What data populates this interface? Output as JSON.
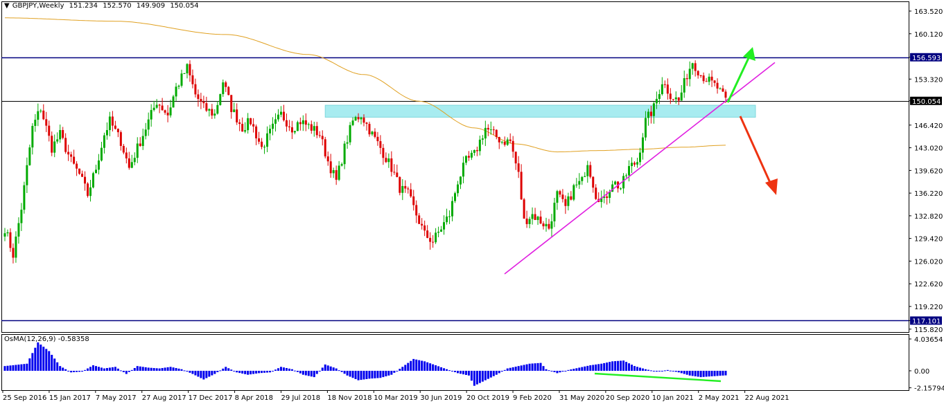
{
  "header": {
    "symbol": "GBPJPY,Weekly",
    "open": "151.234",
    "high": "152.570",
    "low": "149.909",
    "close": "150.054"
  },
  "indicator": {
    "name": "OsMA(12,26,9)",
    "value": "-0.58358",
    "ticks": [
      "4.03654",
      "0.00",
      "-2.15794"
    ]
  },
  "chart_data": {
    "type": "candlestick",
    "price_ticks": [
      "163.520",
      "160.120",
      "156.593",
      "153.320",
      "150.054",
      "146.420",
      "143.020",
      "139.620",
      "136.220",
      "132.820",
      "129.420",
      "126.020",
      "122.620",
      "119.220",
      "117.101",
      "115.820"
    ],
    "date_ticks": [
      "25 Sep 2016",
      "15 Jan 2017",
      "7 May 2017",
      "27 Aug 2017",
      "17 Dec 2017",
      "8 Apr 2018",
      "29 Jul 2018",
      "18 Nov 2018",
      "10 Mar 2019",
      "30 Jun 2019",
      "20 Oct 2019",
      "9 Feb 2020",
      "31 May 2020",
      "20 Sep 2020",
      "10 Jan 2021",
      "2 May 2021",
      "22 Aug 2021"
    ],
    "horizontal_levels": [
      {
        "value": 156.593,
        "label": "156.593",
        "color": "#000080"
      },
      {
        "value": 150.054,
        "label": "150.054",
        "color": "#000000"
      },
      {
        "value": 117.101,
        "label": "117.101",
        "color": "#000080"
      }
    ],
    "zone": {
      "from": 147.6,
      "to": 149.4,
      "color": "#a8ecf0"
    },
    "trendline": {
      "from": {
        "date": "2020-03-16",
        "price": 124.1
      },
      "to": {
        "date": "2021-09-13",
        "price": 155.4
      },
      "color": "#e020e0"
    },
    "arrows": [
      {
        "direction": "up",
        "color": "#22ee22"
      },
      {
        "direction": "down",
        "color": "#ee3311"
      }
    ],
    "moving_average_color": "#e0a020",
    "bull_color": "#00aa00",
    "bear_color": "#dd0000",
    "osma_color": "#0000ee",
    "divergence_color": "#22ee22"
  }
}
